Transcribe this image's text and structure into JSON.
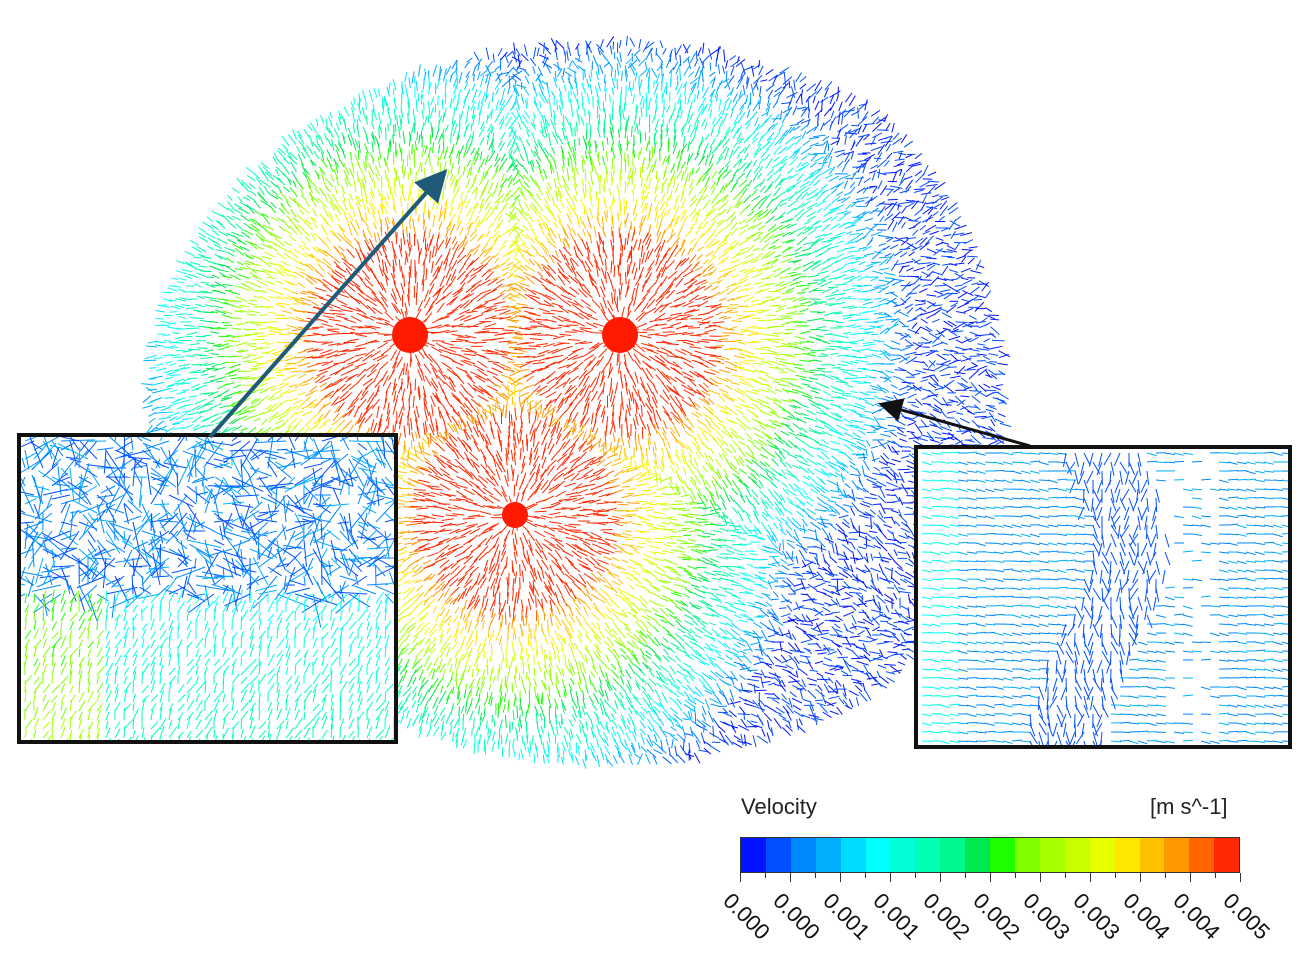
{
  "legend": {
    "title": "Velocity",
    "units": "[m s^-1]",
    "tick_labels": [
      "0.000",
      "0.000",
      "0.001",
      "0.001",
      "0.002",
      "0.002",
      "0.003",
      "0.003",
      "0.004",
      "0.004",
      "0.005"
    ],
    "range": [
      0,
      0.005
    ],
    "colors": [
      "#0014ff",
      "#0050ff",
      "#0088ff",
      "#00b0ff",
      "#00dcff",
      "#00ffff",
      "#00ffd8",
      "#00ffb4",
      "#00f890",
      "#00e850",
      "#20ff00",
      "#80ff00",
      "#a8ff00",
      "#c8ff00",
      "#e8ff00",
      "#ffe800",
      "#ffc000",
      "#ff9800",
      "#ff6400",
      "#ff2800"
    ]
  }
}
